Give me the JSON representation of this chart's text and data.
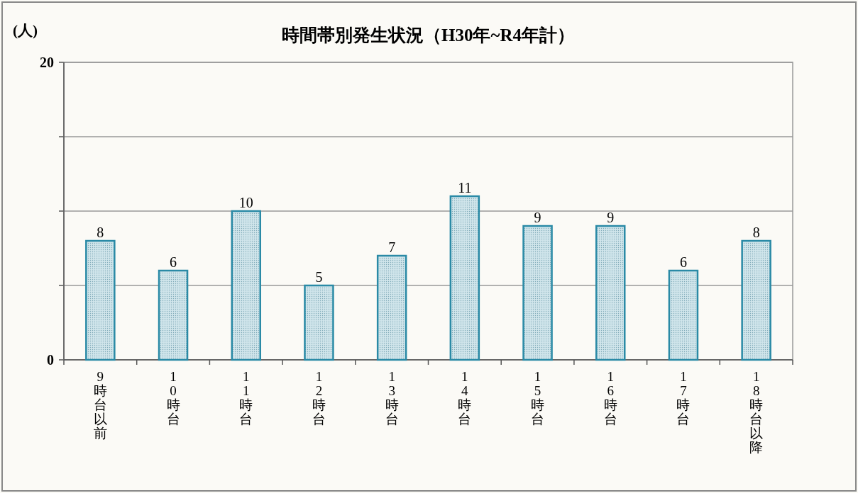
{
  "chart_data": {
    "type": "bar",
    "title": "時間帯別発生状況（H30年~R4年計）",
    "ylabel": "(人)",
    "categories": [
      "9時台以前",
      "10時台",
      "11時台",
      "12時台",
      "13時台",
      "14時台",
      "15時台",
      "16時台",
      "17時台",
      "18時台以降"
    ],
    "values": [
      8,
      6,
      10,
      5,
      7,
      11,
      9,
      9,
      6,
      8
    ],
    "color": "#2a8aa6",
    "ylim": [
      0,
      20
    ],
    "yticks": [
      0,
      {
        "value": 5,
        "label": null
      },
      {
        "value": 10,
        "label": null
      },
      {
        "value": 15,
        "label": null
      },
      20
    ],
    "grid": "y",
    "data_labels": true
  }
}
